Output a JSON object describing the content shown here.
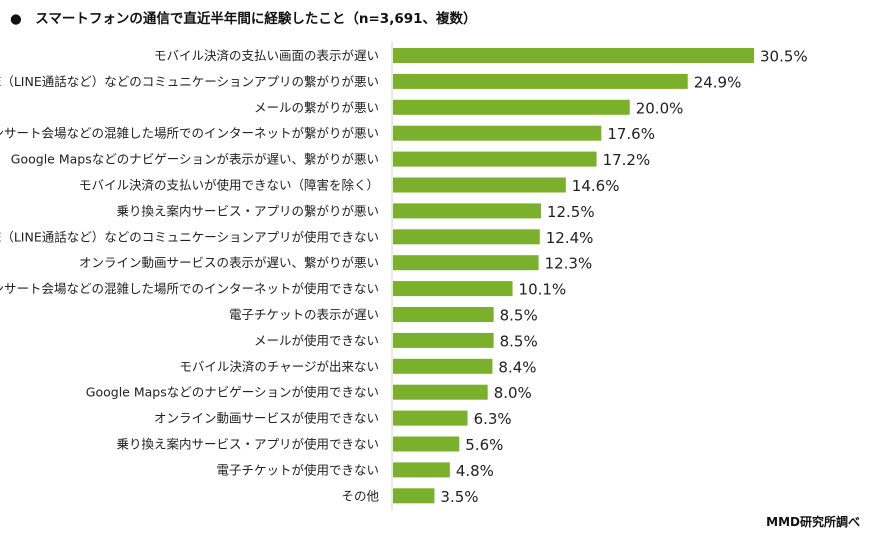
{
  "chart_data": {
    "type": "bar",
    "orientation": "horizontal",
    "title": "●　スマートフォンの通信で直近半年間に経験したこと（n=3,691、複数）",
    "source": "MMD研究所調べ",
    "unit": "%",
    "bar_color": "#7ab02c",
    "categories": [
      "モバイル決済の支払い画面の表示が遅い",
      "LINE（LINE通話など）などのコミュニケーションアプリの繋がりが悪い",
      "メールの繋がりが悪い",
      "コンサート会場などの混雑した場所でのインターネットが繋がりが悪い",
      "Google Mapsなどのナビゲーションが表示が遅い、繋がりが悪い",
      "モバイル決済の支払いが使用できない（障害を除く）",
      "乗り換え案内サービス・アプリの繋がりが悪い",
      "LINE（LINE通話など）などのコミュニケーションアプリが使用できない",
      "オンライン動画サービスの表示が遅い、繋がりが悪い",
      "コンサート会場などの混雑した場所でのインターネットが使用できない",
      "電子チケットの表示が遅い",
      "メールが使用できない",
      "モバイル決済のチャージが出来ない",
      "Google Mapsなどのナビゲーションが使用できない",
      "オンライン動画サービスが使用できない",
      "乗り換え案内サービス・アプリが使用できない",
      "電子チケットが使用できない",
      "その他"
    ],
    "values": [
      30.5,
      24.9,
      20.0,
      17.6,
      17.2,
      14.6,
      12.5,
      12.4,
      12.3,
      10.1,
      8.5,
      8.5,
      8.4,
      8.0,
      6.3,
      5.6,
      4.8,
      3.5
    ],
    "data_labels": [
      "30.5%",
      "24.9%",
      "20.0%",
      "17.6%",
      "17.2%",
      "14.6%",
      "12.5%",
      "12.4%",
      "12.3%",
      "10.1%",
      "8.5%",
      "8.5%",
      "8.4%",
      "8.0%",
      "6.3%",
      "5.6%",
      "4.8%",
      "3.5%"
    ],
    "grid": false,
    "legend": "none"
  }
}
